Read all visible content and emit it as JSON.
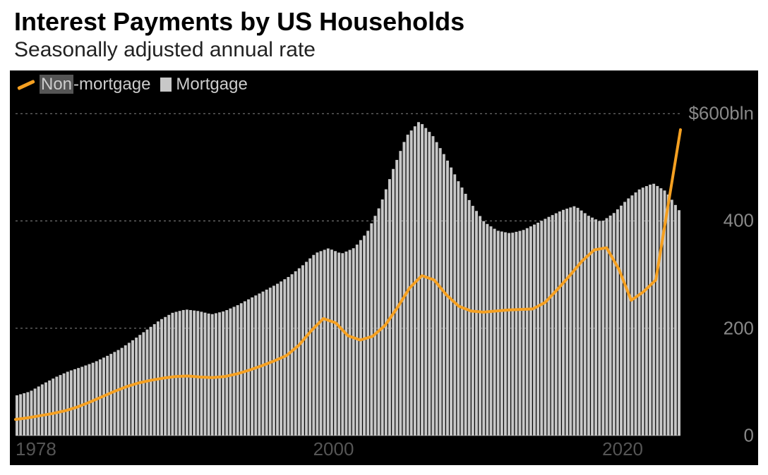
{
  "title": "Interest Payments by US Households",
  "subtitle": "Seasonally adjusted annual rate",
  "title_fontsize": 36,
  "subtitle_fontsize": 30,
  "legend": {
    "non_mortgage_label": "Non-mortgage",
    "non_mortgage_highlight": "Non",
    "non_mortgage_rest": "-mortgage",
    "mortgage_label": "Mortgage"
  },
  "chart": {
    "type": "combo-bar-line",
    "background_color": "#000000",
    "bar_color": "#c8c8c8",
    "line_color": "#f5a021",
    "line_width": 4,
    "grid_color": "#888888",
    "tick_color": "#777777",
    "x_start_year": 1978,
    "x_end_year": 2024,
    "x_ticks": [
      1978,
      2000,
      2020
    ],
    "y_min": 0,
    "y_max": 620,
    "y_gridlines": [
      200,
      400,
      600
    ],
    "y_tick_labels": [
      "0",
      "200",
      "400",
      "$600bln"
    ],
    "y_tick_values": [
      0,
      200,
      400,
      600
    ],
    "mortgage_bars": [
      75,
      82,
      96,
      109,
      120,
      128,
      137,
      149,
      162,
      179,
      197,
      215,
      229,
      235,
      232,
      226,
      232,
      243,
      256,
      269,
      282,
      297,
      317,
      340,
      349,
      339,
      350,
      380,
      430,
      498,
      558,
      586,
      560,
      520,
      474,
      432,
      398,
      382,
      377,
      383,
      395,
      408,
      420,
      428,
      410,
      398,
      415,
      440,
      460,
      470,
      455,
      420
    ],
    "non_mortgage_line": [
      30,
      33,
      37,
      41,
      46,
      53,
      62,
      72,
      82,
      91,
      98,
      103,
      107,
      110,
      111,
      109,
      108,
      110,
      115,
      122,
      130,
      139,
      149,
      168,
      195,
      218,
      210,
      186,
      178,
      185,
      205,
      238,
      275,
      298,
      290,
      262,
      241,
      232,
      230,
      232,
      234,
      235,
      236,
      248,
      272,
      298,
      325,
      346,
      350,
      310,
      252,
      268,
      290,
      430,
      570
    ]
  }
}
